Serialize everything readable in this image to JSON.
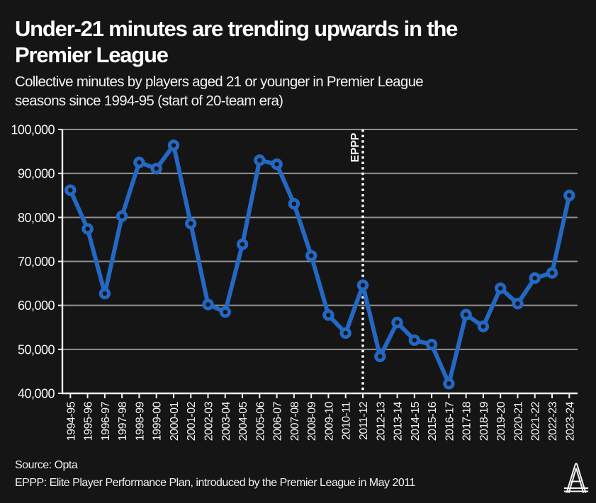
{
  "header": {
    "title_lines": [
      "Under-21 minutes are trending upwards in the",
      "Premier League"
    ],
    "subtitle_lines": [
      "Collective minutes by players aged 21 or younger in Premier League",
      "seasons since 1994-95 (start of 20-team era)"
    ]
  },
  "footer": {
    "source": "Source: Opta",
    "note": "EPPP: Elite Player Performance Plan, introduced by the Premier League in May 2011",
    "logo_icon": "the-athletic-a-logo"
  },
  "chart_data": {
    "type": "line",
    "title": "Under-21 minutes are trending upwards in the Premier League",
    "subtitle": "Collective minutes by players aged 21 or younger in Premier League seasons since 1994-95 (start of 20-team era)",
    "categories": [
      "1994-95",
      "1995-96",
      "1996-97",
      "1997-98",
      "1998-99",
      "1999-00",
      "2000-01",
      "2001-02",
      "2002-03",
      "2003-04",
      "2004-05",
      "2005-06",
      "2006-07",
      "2007-08",
      "2008-09",
      "2009-10",
      "2010-11",
      "2011-12",
      "2012-13",
      "2013-14",
      "2014-15",
      "2015-16",
      "2016-17",
      "2017-18",
      "2018-19",
      "2019-20",
      "2020-21",
      "2021-22",
      "2022-23",
      "2023-24"
    ],
    "values": [
      86200,
      77400,
      62700,
      80300,
      92500,
      91100,
      96400,
      78600,
      60200,
      58500,
      73900,
      93000,
      92100,
      83100,
      71300,
      57800,
      53700,
      64600,
      48400,
      56100,
      52100,
      51100,
      42200,
      57900,
      55200,
      63900,
      60400,
      66200,
      67400,
      85000
    ],
    "xlabel": "",
    "ylabel": "",
    "ylim": [
      40000,
      100000
    ],
    "yticks": [
      {
        "value": 40000,
        "label": "40,000"
      },
      {
        "value": 50000,
        "label": "50,000"
      },
      {
        "value": 60000,
        "label": "60,000"
      },
      {
        "value": 70000,
        "label": "70,000"
      },
      {
        "value": 80000,
        "label": "80,000"
      },
      {
        "value": 90000,
        "label": "90,000"
      },
      {
        "value": 100000,
        "label": "100,000"
      }
    ],
    "grid": true,
    "legend": false,
    "annotation": {
      "label": "EPPP",
      "category": "2011-12",
      "style": "dotted-vertical-line"
    },
    "colors": {
      "line": "#2368c4",
      "marker_fill": "#151515",
      "grid": "#8f8f8f",
      "axis": "#f0f0f0",
      "annotation_line": "#ffffff",
      "background": "#151515",
      "text": "#f5f5f5"
    }
  }
}
